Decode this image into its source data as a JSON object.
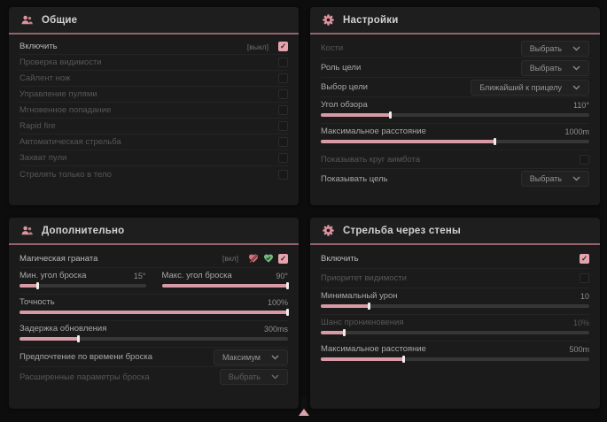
{
  "colors": {
    "accent": "#d89aa4",
    "accent_checkbox": "#e6a3ae",
    "header_divider": "#96646c",
    "green": "#74b87c",
    "panel_bg": "#1b1b1b"
  },
  "panels": {
    "general": {
      "title": "Общие",
      "rows": [
        {
          "label": "Включить",
          "hint": "[выкл]",
          "checked": true
        },
        {
          "label": "Проверка видимости",
          "checked": false
        },
        {
          "label": "Сайлент нож",
          "checked": false
        },
        {
          "label": "Управление пулями",
          "checked": false
        },
        {
          "label": "Мгновенное попадание",
          "checked": false
        },
        {
          "label": "Rapid fire",
          "checked": false
        },
        {
          "label": "Автоматическая стрельба",
          "checked": false
        },
        {
          "label": "Захват пули",
          "checked": false
        },
        {
          "label": "Стрелять только в тело",
          "checked": false
        }
      ]
    },
    "settings": {
      "title": "Настройки",
      "bones": {
        "label": "Кости",
        "value": "Выбрать"
      },
      "target_role": {
        "label": "Роль цели",
        "value": "Выбрать"
      },
      "target_select": {
        "label": "Выбор цели",
        "value": "Ближайший к прицелу"
      },
      "fov": {
        "label": "Угол обзора",
        "value": "110°",
        "fill": "26%"
      },
      "max_distance": {
        "label": "Максимальное расстояние",
        "value": "1000m",
        "fill": "65%"
      },
      "show_circle": {
        "label": "Показывать круг аимбота",
        "checked": false
      },
      "show_target": {
        "label": "Показывать цель",
        "value": "Выбрать"
      }
    },
    "additional": {
      "title": "Дополнительно",
      "magic_grenade": {
        "label": "Магическая граната",
        "hint": "[вкл]",
        "checked": true
      },
      "min_throw_angle": {
        "label": "Мин. угол броска",
        "value": "15°",
        "fill": "15%"
      },
      "max_throw_angle": {
        "label": "Макс. угол броска",
        "value": "90°",
        "fill": "100%"
      },
      "accuracy": {
        "label": "Точность",
        "value": "100%",
        "fill": "100%"
      },
      "update_delay": {
        "label": "Задержка обновления",
        "value": "300ms",
        "fill": "22%"
      },
      "throw_time_pref": {
        "label": "Предпочтение по времени броска",
        "value": "Максимум"
      },
      "advanced_params": {
        "label": "Расширенные параметры броска",
        "value": "Выбрать"
      }
    },
    "wallbang": {
      "title": "Стрельба через стены",
      "enable": {
        "label": "Включить",
        "checked": true
      },
      "visibility_priority": {
        "label": "Приоритет видимости",
        "checked": false
      },
      "min_damage": {
        "label": "Минимальный урон",
        "value": "10",
        "fill": "18%"
      },
      "penetration_chance": {
        "label": "Шанс проникновения",
        "value": "10%",
        "fill": "9%"
      },
      "max_distance": {
        "label": "Максимальное расстояние",
        "value": "500m",
        "fill": "31%"
      }
    }
  }
}
